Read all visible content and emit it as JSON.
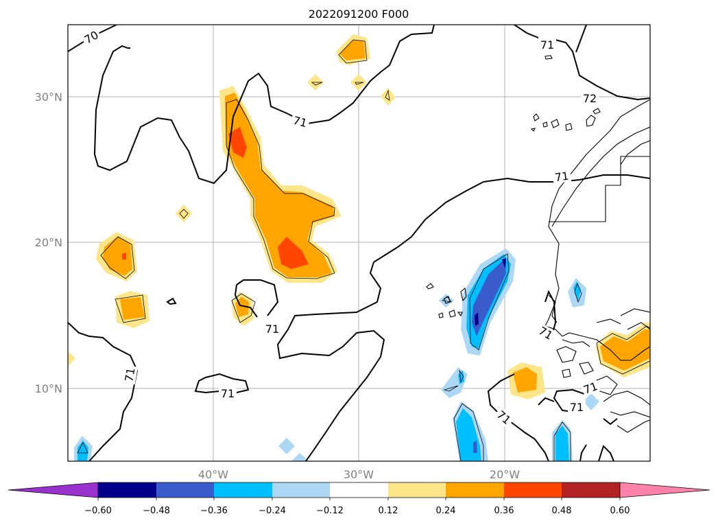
{
  "title": "2022091200 F000",
  "lat_labels": [
    "30°N",
    "20°N",
    "10°N"
  ],
  "lon_labels": [
    "40°W",
    "30°W",
    "20°W"
  ],
  "contour_labels": [
    "70",
    "71",
    "71",
    "71",
    "71",
    "71",
    "71",
    "71",
    "72",
    "71",
    "71",
    "71"
  ],
  "colorbar": {
    "ticks": [
      "−0.60",
      "−0.48",
      "−0.36",
      "−0.24",
      "−0.12",
      "0.12",
      "0.24",
      "0.36",
      "0.48",
      "0.60"
    ],
    "colors": [
      "#9932cc",
      "#00008b",
      "#3a5bcc",
      "#00bfff",
      "#add8f5",
      "#ffffff",
      "#fde68a",
      "#ffa500",
      "#ff4500",
      "#b22222",
      "#ff82ab"
    ]
  },
  "fill_colors": {
    "neg_light": "#add8f5",
    "neg_mid": "#00bfff",
    "neg_dark": "#3a5bcc",
    "neg_darkest": "#00008b",
    "pos_light": "#fde68a",
    "pos_mid": "#ffa500",
    "pos_dark": "#ff4500"
  }
}
